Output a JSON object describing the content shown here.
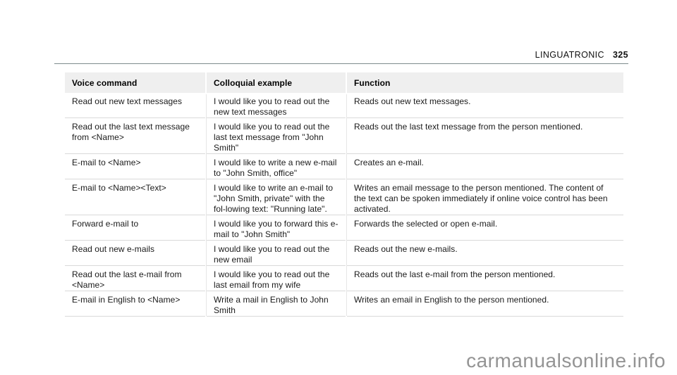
{
  "page": {
    "header": {
      "section_title": "LINGUATRONIC",
      "page_number": "325"
    },
    "watermark": "carmanualsonline.info",
    "colors": {
      "table_header_bg": "#efefef",
      "row_separator": "#d9d9d9",
      "header_rule": "#7e8c8d",
      "watermark_text": "#949494"
    }
  },
  "table": {
    "columns": [
      {
        "label": "Voice command"
      },
      {
        "label": "Colloquial example"
      },
      {
        "label": "Function"
      }
    ],
    "rows": [
      {
        "voice_command": "Read out new text messages",
        "colloquial_example": "I would like you to read out the new text messages",
        "function": "Reads out new text messages."
      },
      {
        "voice_command": "Read out the last text message from <Name>",
        "colloquial_example": "I would like you to read out the last text message from \"John Smith\"",
        "function": "Reads out the last text message from the person mentioned."
      },
      {
        "voice_command": "E-mail to <Name>",
        "colloquial_example": "I would like to write a new e-mail to \"John Smith, office\"",
        "function": "Creates an e-mail."
      },
      {
        "voice_command": "E-mail to <Name><Text>",
        "colloquial_example": "I would like to write an e-mail to \"John Smith, private\" with the fol-lowing text: \"Running late\".",
        "function": "Writes an email message to the person mentioned. The content of the text can be spoken immediately if online voice control has been activated."
      },
      {
        "voice_command": "Forward e-mail to",
        "colloquial_example": "I would like you to forward this e-mail to \"John Smith\"",
        "function": "Forwards the selected or open e-mail."
      },
      {
        "voice_command": "Read out new e-mails",
        "colloquial_example": "I would like you to read out the new email",
        "function": "Reads out the new e-mails."
      },
      {
        "voice_command": "Read out the last e-mail from <Name>",
        "colloquial_example": "I would like you to read out the last email from my wife",
        "function": "Reads out the last e-mail from the person mentioned."
      },
      {
        "voice_command": "E-mail in English to <Name>",
        "colloquial_example": "Write a mail in English to John Smith",
        "function": "Writes an email in English to the person mentioned."
      }
    ]
  }
}
